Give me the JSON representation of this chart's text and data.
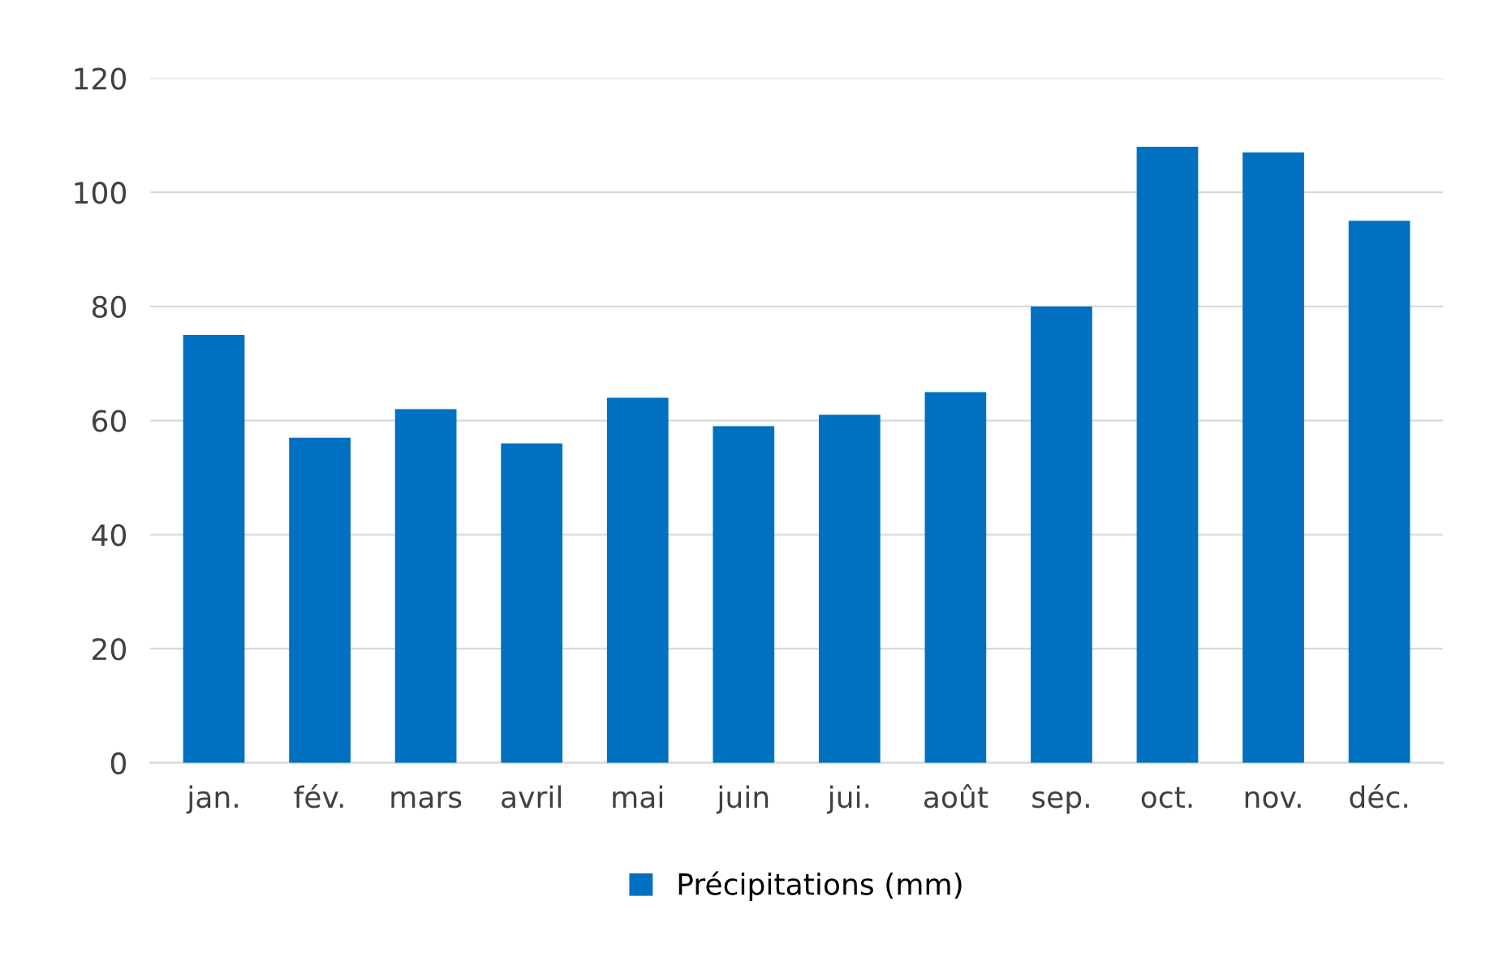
{
  "chart_data": {
    "type": "bar",
    "categories": [
      "jan.",
      "fév.",
      "mars",
      "avril",
      "mai",
      "juin",
      "jui.",
      "août",
      "sep.",
      "oct.",
      "nov.",
      "déc."
    ],
    "series": [
      {
        "name": "Précipitations (mm)",
        "color": "#0070c0",
        "values": [
          75,
          57,
          62,
          56,
          64,
          59,
          61,
          65,
          80,
          108,
          107,
          95
        ]
      }
    ],
    "ylim": [
      0,
      120
    ],
    "yticks": [
      0,
      20,
      40,
      60,
      80,
      100,
      120
    ],
    "grid": "y",
    "legend": "bottom"
  }
}
